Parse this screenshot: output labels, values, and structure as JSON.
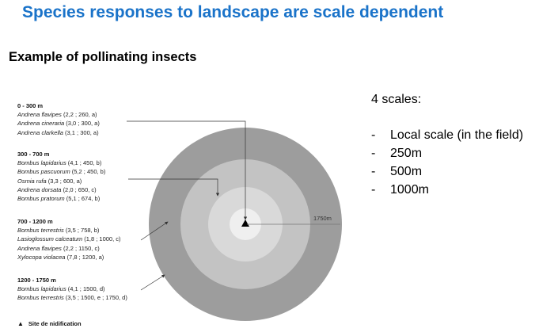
{
  "slide": {
    "title": "Species responses to landscape are scale dependent",
    "subtitle": "Example of pollinating insects"
  },
  "legend": {
    "groups": [
      {
        "range": "0 - 300 m",
        "species": [
          {
            "name": "Andrena flavipes",
            "details": "(2,2 ; 260, a)"
          },
          {
            "name": "Andrena cineraria",
            "details": "(3,0 ; 300, a)"
          },
          {
            "name": "Andrena clarkella",
            "details": "(3,1 ; 300, a)"
          }
        ]
      },
      {
        "range": "300 - 700 m",
        "species": [
          {
            "name": "Bombus lapidarius",
            "details": "(4,1 ; 450, b)"
          },
          {
            "name": "Bombus pascuorum",
            "details": "(5,2 ; 450, b)"
          },
          {
            "name": "Osmia rufa",
            "details": "(3,3 ; 600, a)"
          },
          {
            "name": "Andrena dorsata",
            "details": "(2,0 ; 650, c)"
          },
          {
            "name": "Bombus pratorum",
            "details": "(5,1 ; 674, b)"
          }
        ]
      },
      {
        "range": "700 - 1200 m",
        "species": [
          {
            "name": "Bombus terrestris",
            "details": "(3,5 ; 758, b)"
          },
          {
            "name": "Lasioglossum calceatum",
            "details": "(1,8 ; 1000, c)"
          },
          {
            "name": "Andrena flavipes",
            "details": "(2,2 ; 1150, c)"
          },
          {
            "name": "Xylocopa violacea",
            "details": "(7,8 ; 1200, a)"
          }
        ]
      },
      {
        "range": "1200 - 1750 m",
        "species": [
          {
            "name": "Bombus lapidarius",
            "details": "(4,1 ; 1500, d)"
          },
          {
            "name": "Bombus terrestris",
            "details": "(3,5 ; 1500, e ; 1750, d)"
          }
        ]
      }
    ],
    "nest_symbol": "▲",
    "nest_label": "Site de nidification"
  },
  "diagram": {
    "radius_label": "1750m",
    "ring_colors": [
      "#9d9d9d",
      "#c3c3c3",
      "#d9d9d9",
      "#efefef"
    ],
    "nest_icon": "triangle-icon"
  },
  "scales": {
    "heading": "4 scales:",
    "items": [
      {
        "dash": "-",
        "label": "Local scale (in the field)"
      },
      {
        "dash": "-",
        "label": "250m"
      },
      {
        "dash": "-",
        "label": "500m"
      },
      {
        "dash": "-",
        "label": "1000m"
      }
    ]
  }
}
